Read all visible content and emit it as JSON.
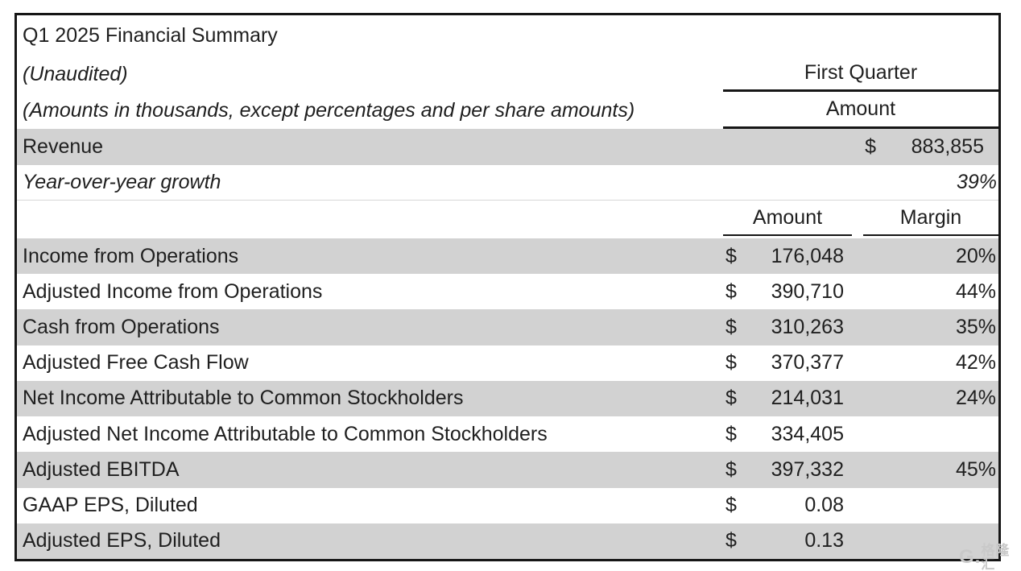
{
  "table": {
    "title": "Q1 2025 Financial Summary",
    "subtitle_unaudited": "(Unaudited)",
    "subtitle_scope": "(Amounts in thousands, except percentages and per share amounts)",
    "period": {
      "header": "First Quarter",
      "subheader": "Amount"
    },
    "revenue": {
      "label": "Revenue",
      "currency": "$",
      "amount": "883,855"
    },
    "growth": {
      "label": "Year-over-year growth",
      "value": "39%"
    },
    "columns": {
      "amount": "Amount",
      "margin": "Margin"
    },
    "rows": [
      {
        "label": "Income from Operations",
        "currency": "$",
        "amount": "176,048",
        "margin": "20%"
      },
      {
        "label": "Adjusted Income from Operations",
        "currency": "$",
        "amount": "390,710",
        "margin": "44%"
      },
      {
        "label": "Cash from Operations",
        "currency": "$",
        "amount": "310,263",
        "margin": "35%"
      },
      {
        "label": "Adjusted Free Cash Flow",
        "currency": "$",
        "amount": "370,377",
        "margin": "42%"
      },
      {
        "label": "Net Income Attributable to Common Stockholders",
        "currency": "$",
        "amount": "214,031",
        "margin": "24%"
      },
      {
        "label": "Adjusted Net Income Attributable to Common Stockholders",
        "currency": "$",
        "amount": "334,405",
        "margin": ""
      },
      {
        "label": "Adjusted EBITDA",
        "currency": "$",
        "amount": "397,332",
        "margin": "45%"
      },
      {
        "label": "GAAP EPS, Diluted",
        "currency": "$",
        "amount": "0.08",
        "margin": ""
      },
      {
        "label": "Adjusted EPS, Diluted",
        "currency": "$",
        "amount": "0.13",
        "margin": ""
      }
    ]
  },
  "watermark": {
    "logo": "G.",
    "brand": "格隆汇"
  },
  "colors": {
    "row_shade": "#d2d2d2",
    "border": "#161616",
    "text": "#1f1f1f",
    "faint_line": "#d8d8d8",
    "watermark": "#c9c9c9"
  }
}
